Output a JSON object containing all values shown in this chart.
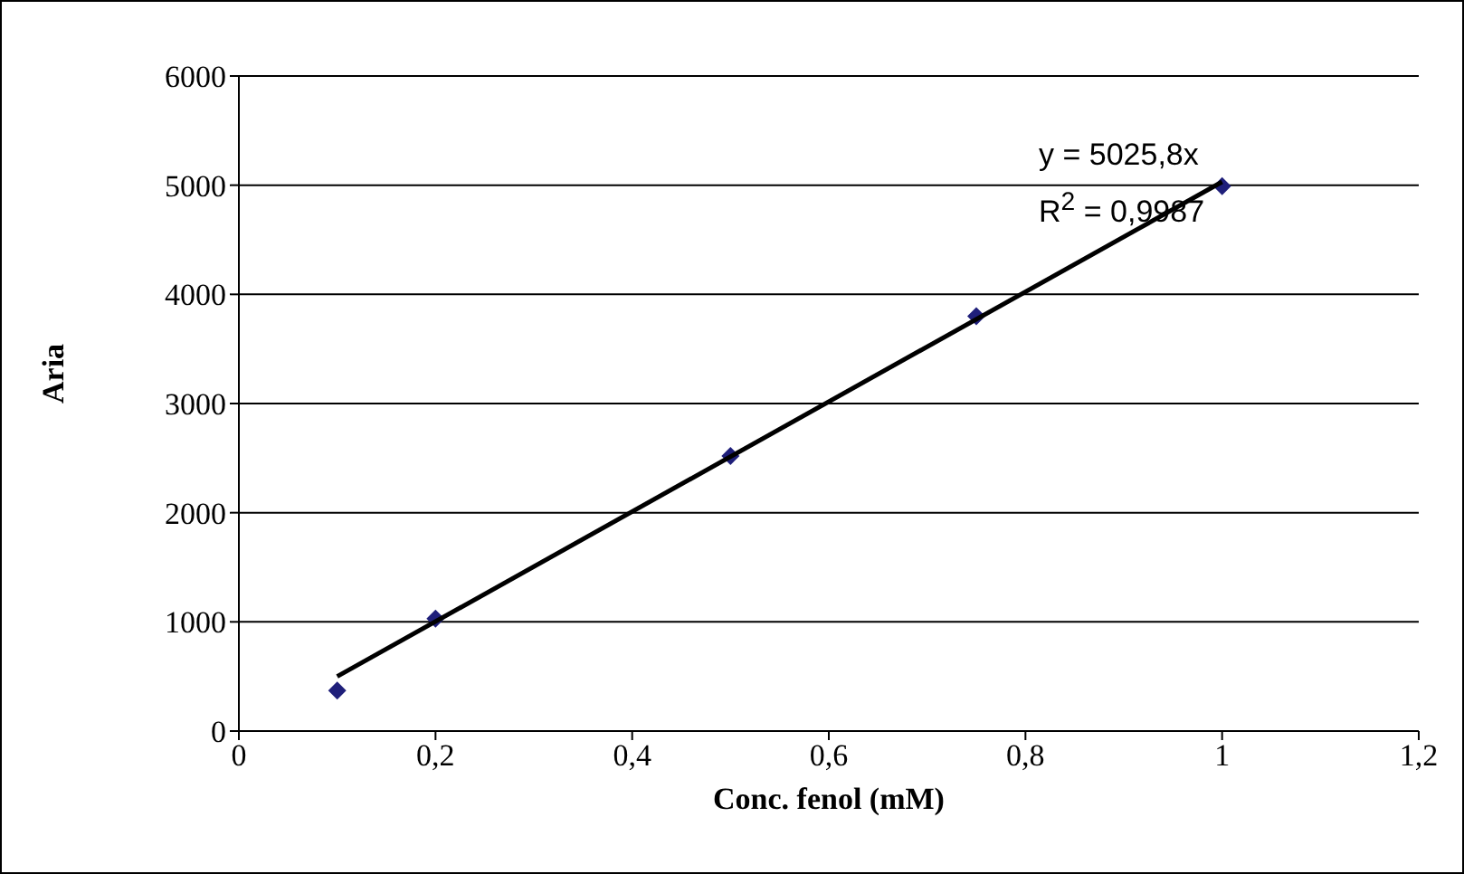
{
  "chart_data": {
    "type": "scatter",
    "xlabel": "Conc. fenol (mM)",
    "ylabel": "Aria",
    "x": [
      0.1,
      0.2,
      0.5,
      0.75,
      1
    ],
    "series": [
      {
        "color": "#1f1f7a",
        "values": [
          370,
          1030,
          2520,
          3800,
          4990
        ],
        "marker": "diamond"
      },
      {
        "type": "line",
        "color": "#000000",
        "x": [
          0.1,
          1
        ],
        "values": [
          500,
          5030
        ],
        "marker": "none",
        "line_style": "solid"
      }
    ],
    "xlim": [
      0,
      1.2
    ],
    "xticks": [
      {
        "value": 0,
        "label": "0"
      },
      {
        "value": 0.2,
        "label": "0,2"
      },
      {
        "value": 0.4,
        "label": "0,4"
      },
      {
        "value": 0.6,
        "label": "0,6"
      },
      {
        "value": 0.8,
        "label": "0,8"
      },
      {
        "value": 1,
        "label": "1"
      },
      {
        "value": 1.2,
        "label": "1,2"
      }
    ],
    "ylim": [
      0,
      6000
    ],
    "yticks": [
      0,
      1000,
      2000,
      3000,
      4000,
      5000,
      6000
    ],
    "grid": "y",
    "annotations": [
      "y = 5025,8x",
      "R$^{2}$ = 0,9987"
    ]
  }
}
